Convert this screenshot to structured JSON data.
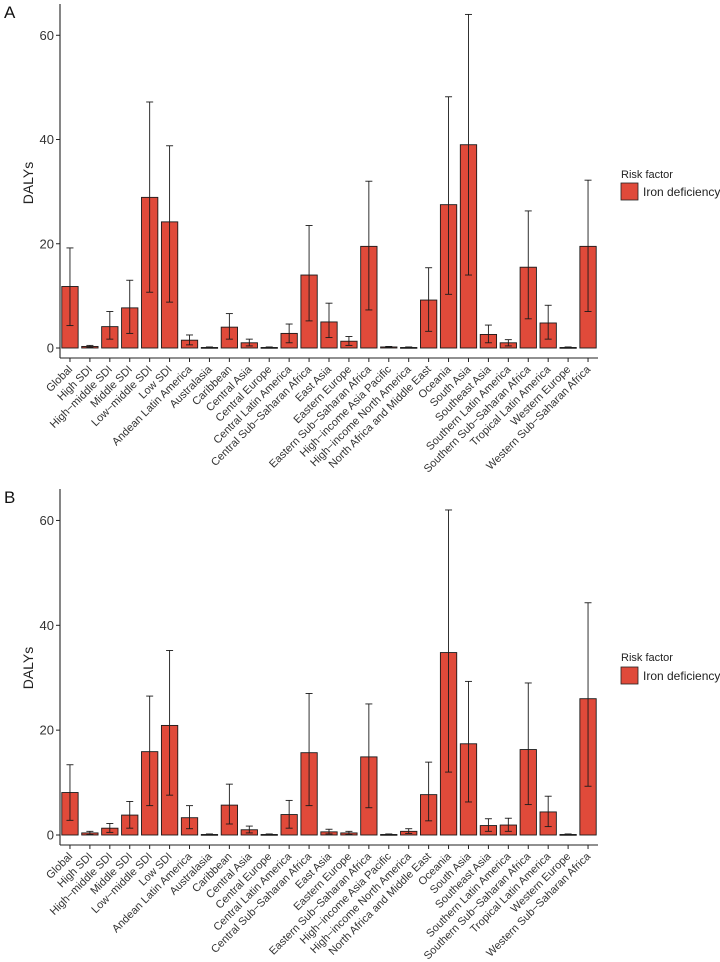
{
  "panels": [
    {
      "label": "A",
      "legend": {
        "title": "Risk factor",
        "entry": "Iron deficiency",
        "swatch_color": "#e04a3a"
      },
      "chart_data": {
        "type": "bar",
        "ylabel": "DALYs",
        "ylim": [
          0,
          66
        ],
        "yticks": [
          0,
          20,
          40,
          60
        ],
        "grid": false,
        "legend_position": "right",
        "bar_color": "#e04a3a",
        "categories": [
          "Global",
          "High SDI",
          "High−middle SDI",
          "Middle SDI",
          "Low−middle SDI",
          "Low SDI",
          "Andean Latin America",
          "Australasia",
          "Caribbean",
          "Central Asia",
          "Central Europe",
          "Central Latin America",
          "Central Sub−Saharan Africa",
          "East Asia",
          "Eastern Europe",
          "Eastern Sub−Saharan Africa",
          "High−income Asia Pacific",
          "High−income North America",
          "North Africa and Middle East",
          "Oceania",
          "South Asia",
          "Southeast Asia",
          "Southern Latin America",
          "Southern Sub−Saharan Africa",
          "Tropical Latin America",
          "Western Europe",
          "Western Sub−Saharan Africa"
        ],
        "series": [
          {
            "values": [
              11.8,
              0.3,
              4.1,
              7.7,
              28.9,
              24.2,
              1.5,
              0.1,
              4.0,
              1.0,
              0.1,
              2.8,
              14.0,
              5.0,
              1.3,
              19.5,
              0.2,
              0.1,
              9.2,
              27.5,
              39.0,
              2.6,
              1.0,
              15.5,
              4.8,
              0.1,
              19.5
            ],
            "error_low": [
              4.3,
              0.1,
              1.7,
              2.8,
              10.7,
              8.8,
              0.6,
              0.0,
              1.7,
              0.4,
              0.0,
              1.0,
              5.2,
              2.0,
              0.5,
              7.3,
              0.1,
              0.0,
              3.2,
              10.3,
              14.0,
              1.0,
              0.4,
              5.6,
              1.7,
              0.0,
              7.0
            ],
            "error_high": [
              19.2,
              0.5,
              7.0,
              13.0,
              47.2,
              38.8,
              2.5,
              0.2,
              6.6,
              1.7,
              0.2,
              4.6,
              23.5,
              8.6,
              2.2,
              32.0,
              0.3,
              0.2,
              15.4,
              48.2,
              64.0,
              4.4,
              1.6,
              26.3,
              8.2,
              0.2,
              32.2
            ]
          }
        ]
      }
    },
    {
      "label": "B",
      "legend": {
        "title": "Risk factor",
        "entry": "Iron deficiency",
        "swatch_color": "#e04a3a"
      },
      "chart_data": {
        "type": "bar",
        "ylabel": "DALYs",
        "ylim": [
          0,
          66
        ],
        "yticks": [
          0,
          20,
          40,
          60
        ],
        "grid": false,
        "legend_position": "right",
        "bar_color": "#e04a3a",
        "categories": [
          "Global",
          "High SDI",
          "High−middle SDI",
          "Middle SDI",
          "Low−middle SDI",
          "Low SDI",
          "Andean Latin America",
          "Australasia",
          "Caribbean",
          "Central Asia",
          "Central Europe",
          "Central Latin America",
          "Central Sub−Saharan Africa",
          "East Asia",
          "Eastern Europe",
          "Eastern Sub−Saharan Africa",
          "High−income Asia Pacific",
          "High−income North America",
          "North Africa and Middle East",
          "Oceania",
          "South Asia",
          "Southeast Asia",
          "Southern Latin America",
          "Southern Sub−Saharan Africa",
          "Tropical Latin America",
          "Western Europe",
          "Western Sub−Saharan Africa"
        ],
        "series": [
          {
            "values": [
              8.1,
              0.4,
              1.3,
              3.8,
              15.9,
              20.9,
              3.3,
              0.1,
              5.7,
              1.0,
              0.1,
              3.9,
              15.7,
              0.6,
              0.4,
              14.9,
              0.1,
              0.7,
              7.7,
              34.8,
              17.4,
              1.8,
              1.9,
              16.3,
              4.4,
              0.1,
              26.0
            ],
            "error_low": [
              2.8,
              0.1,
              0.5,
              1.3,
              5.6,
              7.6,
              1.2,
              0.0,
              2.1,
              0.4,
              0.0,
              1.3,
              5.6,
              0.2,
              0.1,
              5.2,
              0.0,
              0.3,
              2.7,
              12.0,
              6.3,
              0.7,
              0.7,
              5.8,
              1.6,
              0.0,
              9.3
            ],
            "error_high": [
              13.4,
              0.7,
              2.2,
              6.4,
              26.5,
              35.2,
              5.6,
              0.2,
              9.7,
              1.7,
              0.2,
              6.6,
              27.0,
              1.1,
              0.7,
              25.0,
              0.2,
              1.2,
              13.9,
              62.0,
              29.3,
              3.1,
              3.2,
              29.0,
              7.4,
              0.2,
              44.3
            ]
          }
        ]
      }
    }
  ]
}
